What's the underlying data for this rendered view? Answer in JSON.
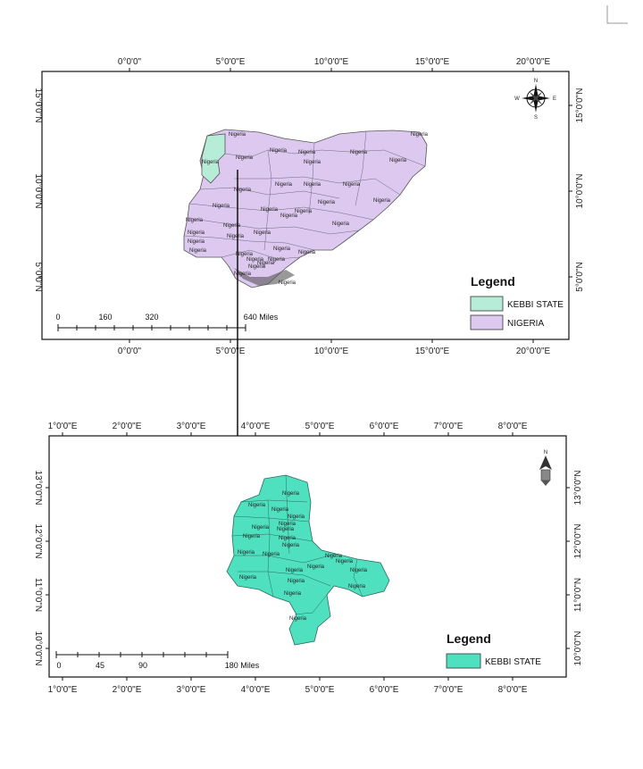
{
  "top_map": {
    "top_ticks": [
      "0°0'0\"",
      "5°0'0\"E",
      "10°0'0\"E",
      "15°0'0\"E",
      "20°0'0\"E"
    ],
    "bottom_ticks": [
      "0°0'0\"",
      "5°0'0\"E",
      "10°0'0\"E",
      "15°0'0\"E",
      "20°0'0\"E"
    ],
    "left_ticks": [
      "15°0'0\"N",
      "10°0'0\"N",
      "5°0'0\"N"
    ],
    "right_ticks": [
      "15°0'0\"N",
      "10°0'0\"N",
      "5°0'0\"N"
    ],
    "legend": {
      "title": "Legend",
      "items": [
        {
          "label": "KEBBI STATE",
          "color": "#b7ecd9"
        },
        {
          "label": "NIGERIA",
          "color": "#ddc8ef"
        }
      ]
    },
    "scale": {
      "labels": [
        "0",
        "160",
        "320",
        "640 Miles"
      ]
    },
    "fill_color": "#ddc8ef",
    "highlight_color": "#b7ecd9",
    "region_label": "Nigeria",
    "north_arrow": {
      "n": "N",
      "e": "E",
      "s": "S",
      "w": "W"
    }
  },
  "bottom_map": {
    "top_ticks": [
      "1°0'0\"E",
      "2°0'0\"E",
      "3°0'0\"E",
      "4°0'0\"E",
      "5°0'0\"E",
      "6°0'0\"E",
      "7°0'0\"E",
      "8°0'0\"E"
    ],
    "bottom_ticks": [
      "1°0'0\"E",
      "2°0'0\"E",
      "3°0'0\"E",
      "4°0'0\"E",
      "5°0'0\"E",
      "6°0'0\"E",
      "7°0'0\"E",
      "8°0'0\"E"
    ],
    "left_ticks": [
      "13°0'0\"N",
      "12°0'0\"N",
      "11°0'0\"N",
      "10°0'0\"N"
    ],
    "right_ticks": [
      "13°0'0\"N",
      "12°0'0\"N",
      "11°0'0\"N",
      "10°0'0\"N"
    ],
    "legend": {
      "title": "Legend",
      "items": [
        {
          "label": "KEBBI STATE",
          "color": "#4fe0c0"
        }
      ]
    },
    "scale": {
      "labels": [
        "0",
        "45",
        "90",
        "180 Miles"
      ]
    },
    "fill_color": "#4fe0c0",
    "region_label": "Nigeria",
    "north_arrow": {
      "n": "N"
    }
  }
}
